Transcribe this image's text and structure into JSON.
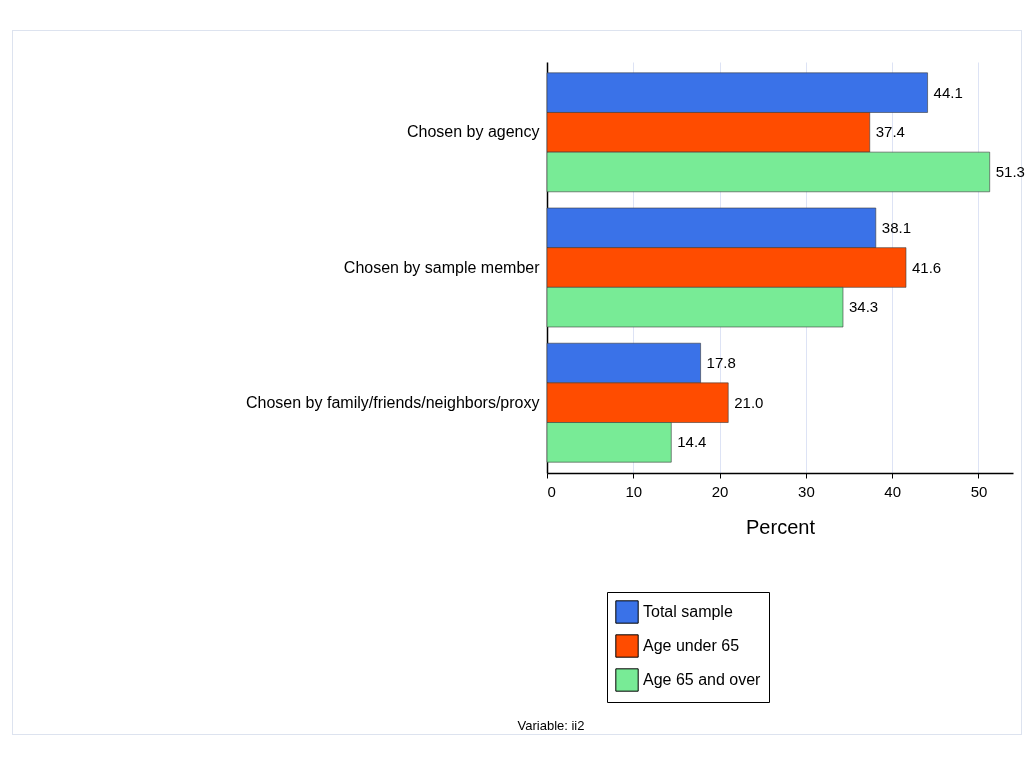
{
  "chart_data": {
    "type": "bar",
    "orientation": "horizontal",
    "categories": [
      "Chosen by agency",
      "Chosen by sample member",
      "Chosen by family/friends/neighbors/proxy"
    ],
    "series": [
      {
        "name": "Total sample",
        "color": "#3a72e8",
        "values": [
          44.1,
          38.1,
          17.8
        ],
        "value_labels": [
          "44.1",
          "38.1",
          "17.8"
        ]
      },
      {
        "name": "Age under 65",
        "color": "#ff4c00",
        "values": [
          37.4,
          41.6,
          21.0
        ],
        "value_labels": [
          "37.4",
          "41.6",
          "21.0"
        ]
      },
      {
        "name": "Age 65 and over",
        "color": "#78eb96",
        "values": [
          51.3,
          34.3,
          14.4
        ],
        "value_labels": [
          "51.3",
          "34.3",
          "14.4"
        ]
      }
    ],
    "xlabel": "Percent",
    "xlim": [
      0,
      54
    ],
    "xticks": [
      0,
      10,
      20,
      30,
      40,
      50
    ],
    "grid": "x",
    "legend": "bottom",
    "annotations": [
      "Variable: ii2"
    ]
  }
}
